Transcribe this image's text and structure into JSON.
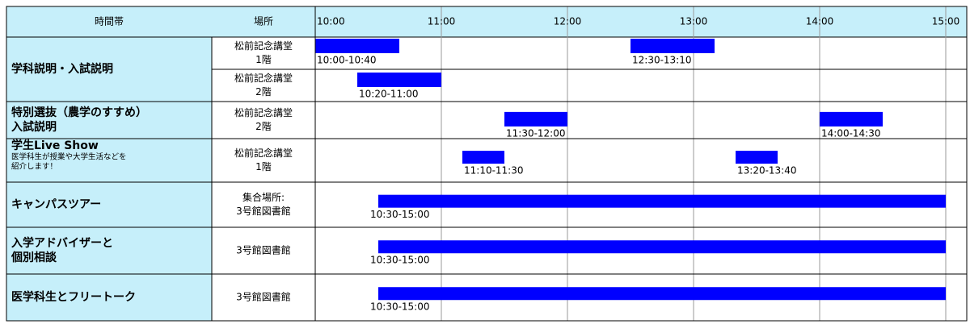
{
  "chart_data": {
    "type": "gantt",
    "color": "#0000ff",
    "headers": [
      "時間帯",
      "場所"
    ],
    "xlim": [
      600,
      910
    ],
    "xticks": [
      {
        "value": 600,
        "label": "10:00"
      },
      {
        "value": 660,
        "label": "11:00"
      },
      {
        "value": 720,
        "label": "12:00"
      },
      {
        "value": 780,
        "label": "13:00"
      },
      {
        "value": 840,
        "label": "14:00"
      },
      {
        "value": 900,
        "label": "15:00"
      }
    ],
    "rows": [
      {
        "name": [
          "学科説明・入試説明"
        ],
        "subrows": [
          {
            "venue": [
              "松前記念講堂",
              "1階"
            ],
            "tasks": [
              {
                "start": 600,
                "end": 640,
                "label": "10:00-10:40"
              },
              {
                "start": 750,
                "end": 790,
                "label": "12:30-13:10"
              }
            ]
          },
          {
            "venue": [
              "松前記念講堂",
              "2階"
            ],
            "tasks": [
              {
                "start": 620,
                "end": 660,
                "label": "10:20-11:00"
              }
            ]
          }
        ]
      },
      {
        "name": [
          "特別選抜（農学のすすめ）",
          "入試説明"
        ],
        "subrows": [
          {
            "venue": [
              "松前記念講堂",
              "2階"
            ],
            "tasks": [
              {
                "start": 690,
                "end": 720,
                "label": "11:30-12:00"
              },
              {
                "start": 840,
                "end": 870,
                "label": "14:00-14:30"
              }
            ]
          }
        ]
      },
      {
        "name": [
          "学生Live Show"
        ],
        "note": [
          "医学科生が授業や大学生活などを",
          "紹介します！"
        ],
        "subrows": [
          {
            "venue": [
              "松前記念講堂",
              "1階"
            ],
            "tasks": [
              {
                "start": 670,
                "end": 690,
                "label": "11:10-11:30"
              },
              {
                "start": 800,
                "end": 820,
                "label": "13:20-13:40"
              }
            ]
          }
        ]
      },
      {
        "name": [
          "キャンパスツアー"
        ],
        "subrows": [
          {
            "venue": [
              "集合場所:",
              "3号館図書館"
            ],
            "tasks": [
              {
                "start": 630,
                "end": 900,
                "label": "10:30-15:00"
              }
            ]
          }
        ]
      },
      {
        "name": [
          "入学アドバイザーと",
          "個別相談"
        ],
        "subrows": [
          {
            "venue": [
              "3号館図書館"
            ],
            "tasks": [
              {
                "start": 630,
                "end": 900,
                "label": "10:30-15:00"
              }
            ]
          }
        ]
      },
      {
        "name": [
          "医学科生とフリートーク"
        ],
        "subrows": [
          {
            "venue": [
              "3号館図書館"
            ],
            "tasks": [
              {
                "start": 630,
                "end": 900,
                "label": "10:30-15:00"
              }
            ]
          }
        ]
      }
    ]
  }
}
